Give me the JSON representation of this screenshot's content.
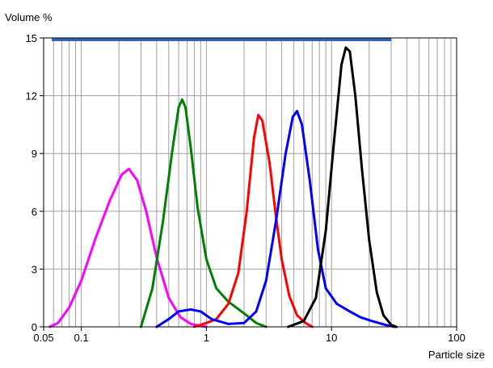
{
  "chart_data": {
    "type": "line",
    "title": "",
    "xlabel": "Particle size",
    "ylabel": "Volume %",
    "x_scale": "log",
    "xlim": [
      0.05,
      100
    ],
    "ylim": [
      0,
      15
    ],
    "x_ticks": [
      0.05,
      0.1,
      1,
      10,
      100
    ],
    "x_tick_labels": [
      "0.05",
      "0.1",
      "1",
      "10",
      "100"
    ],
    "y_ticks": [
      0,
      3,
      6,
      9,
      12,
      15
    ],
    "y_tick_labels": [
      "0",
      "3",
      "6",
      "9",
      "12",
      "15"
    ],
    "grid": true,
    "legend": "none",
    "range_bar": {
      "x": [
        0.058,
        30
      ],
      "y": 15,
      "color": "#3060c0"
    },
    "series": [
      {
        "color": "#ff00ff",
        "points": [
          [
            0.056,
            0
          ],
          [
            0.065,
            0.2
          ],
          [
            0.08,
            1.0
          ],
          [
            0.1,
            2.4
          ],
          [
            0.13,
            4.6
          ],
          [
            0.17,
            6.6
          ],
          [
            0.21,
            7.9
          ],
          [
            0.24,
            8.2
          ],
          [
            0.28,
            7.6
          ],
          [
            0.33,
            6.0
          ],
          [
            0.4,
            3.6
          ],
          [
            0.5,
            1.5
          ],
          [
            0.62,
            0.5
          ],
          [
            0.75,
            0.15
          ],
          [
            0.9,
            0.05
          ],
          [
            1.0,
            0
          ]
        ]
      },
      {
        "color": "#008000",
        "points": [
          [
            0.3,
            0
          ],
          [
            0.37,
            2.0
          ],
          [
            0.45,
            5.5
          ],
          [
            0.53,
            9.0
          ],
          [
            0.6,
            11.4
          ],
          [
            0.64,
            11.8
          ],
          [
            0.68,
            11.4
          ],
          [
            0.75,
            9.3
          ],
          [
            0.85,
            6.2
          ],
          [
            1.0,
            3.5
          ],
          [
            1.2,
            2.0
          ],
          [
            1.5,
            1.3
          ],
          [
            2.0,
            0.7
          ],
          [
            2.5,
            0.2
          ],
          [
            3.0,
            0
          ]
        ]
      },
      {
        "color": "#ff0000",
        "points": [
          [
            0.8,
            0
          ],
          [
            1.0,
            0.2
          ],
          [
            1.2,
            0.4
          ],
          [
            1.5,
            1.2
          ],
          [
            1.8,
            2.8
          ],
          [
            2.1,
            6.0
          ],
          [
            2.4,
            9.8
          ],
          [
            2.6,
            11.0
          ],
          [
            2.8,
            10.7
          ],
          [
            3.2,
            8.5
          ],
          [
            3.6,
            5.7
          ],
          [
            4.0,
            3.5
          ],
          [
            4.6,
            1.6
          ],
          [
            5.3,
            0.6
          ],
          [
            6.2,
            0.2
          ],
          [
            7.0,
            0
          ]
        ]
      },
      {
        "color": "#0000ff",
        "points": [
          [
            0.4,
            0
          ],
          [
            0.5,
            0.4
          ],
          [
            0.6,
            0.8
          ],
          [
            0.75,
            0.9
          ],
          [
            0.9,
            0.8
          ],
          [
            1.1,
            0.4
          ],
          [
            1.5,
            0.15
          ],
          [
            2.0,
            0.2
          ],
          [
            2.5,
            0.8
          ],
          [
            3.0,
            2.4
          ],
          [
            3.6,
            5.5
          ],
          [
            4.3,
            9.0
          ],
          [
            4.9,
            10.9
          ],
          [
            5.3,
            11.2
          ],
          [
            5.8,
            10.5
          ],
          [
            6.7,
            7.6
          ],
          [
            7.8,
            4.0
          ],
          [
            9.0,
            2.0
          ],
          [
            11,
            1.2
          ],
          [
            14,
            0.8
          ],
          [
            17,
            0.5
          ],
          [
            21,
            0.3
          ],
          [
            27,
            0.1
          ],
          [
            32,
            0
          ]
        ]
      },
      {
        "color": "#000000",
        "points": [
          [
            4.5,
            0
          ],
          [
            6.0,
            0.3
          ],
          [
            7.5,
            1.5
          ],
          [
            9.0,
            5.0
          ],
          [
            10.5,
            9.7
          ],
          [
            12.0,
            13.6
          ],
          [
            13.0,
            14.5
          ],
          [
            14.0,
            14.3
          ],
          [
            15.5,
            12.0
          ],
          [
            17.5,
            8.2
          ],
          [
            20,
            4.5
          ],
          [
            23,
            1.8
          ],
          [
            26,
            0.6
          ],
          [
            30,
            0.1
          ],
          [
            33,
            0
          ]
        ]
      }
    ]
  }
}
